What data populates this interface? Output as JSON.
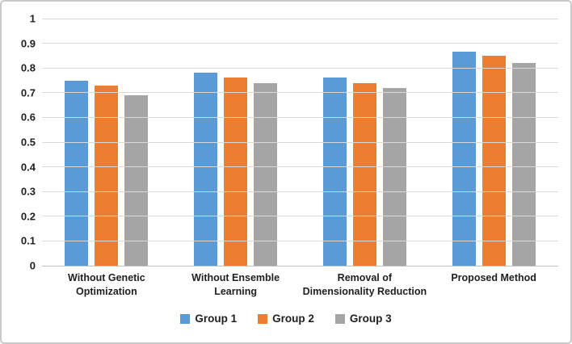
{
  "figure": {
    "background": "#ffffff",
    "border_color": "#c9c9c9",
    "text_color": "#1f1f1f"
  },
  "chart_data": {
    "type": "bar",
    "title": "",
    "xlabel": "",
    "ylabel": "",
    "categories": [
      "Without Genetic Optimization",
      "Without Ensemble Learning",
      "Removal of Dimensionality Reduction",
      "Proposed Method"
    ],
    "category_label_lines": [
      [
        "Without Genetic",
        "Optimization"
      ],
      [
        "Without Ensemble",
        "Learning"
      ],
      [
        "Removal of",
        "Dimensionality Reduction"
      ],
      [
        "Proposed Method"
      ]
    ],
    "series": [
      {
        "name": "Group 1",
        "color": "#5B9BD5",
        "values": [
          0.75,
          0.78,
          0.76,
          0.865
        ]
      },
      {
        "name": "Group 2",
        "color": "#ED7D31",
        "values": [
          0.73,
          0.76,
          0.74,
          0.85
        ]
      },
      {
        "name": "Group 3",
        "color": "#A5A5A5",
        "values": [
          0.69,
          0.74,
          0.72,
          0.82
        ]
      }
    ],
    "y_axis": {
      "min": 0,
      "max": 1,
      "step": 0.1,
      "tick_labels": [
        "0",
        "0.1",
        "0.2",
        "0.3",
        "0.4",
        "0.5",
        "0.6",
        "0.7",
        "0.8",
        "0.9",
        "1"
      ]
    },
    "grid": true,
    "gridline_color": "#d9d9d9",
    "axis_line_color": "#bfbfbf",
    "legend": {
      "position": "bottom",
      "entries": [
        "Group 1",
        "Group 2",
        "Group 3"
      ]
    }
  }
}
